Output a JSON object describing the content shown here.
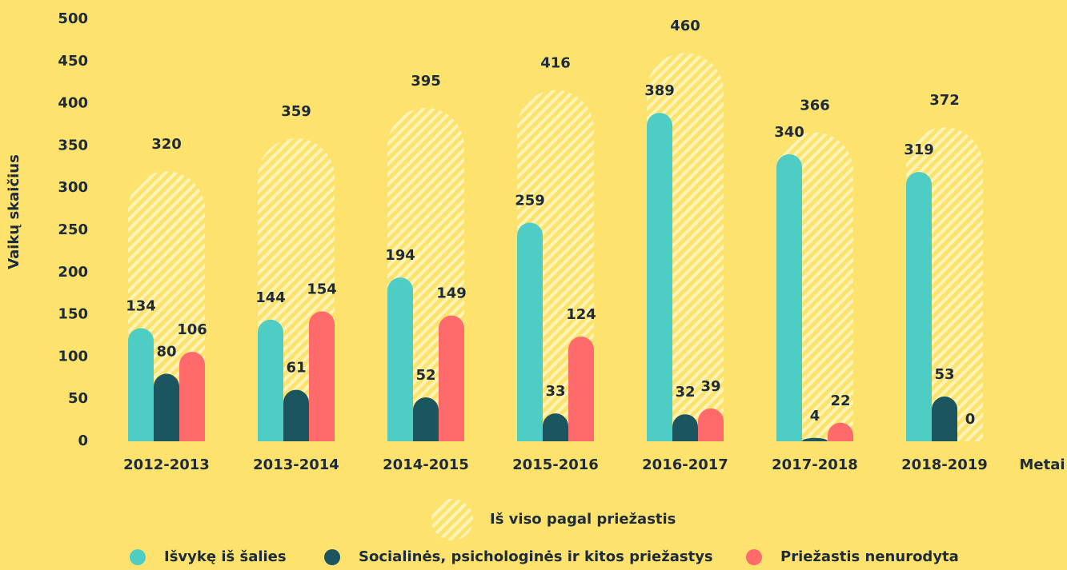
{
  "chart_data": {
    "type": "bar",
    "y_label": "Vaikų skaičius",
    "x_label": "Metai",
    "categories": [
      "2012-2013",
      "2013-2014",
      "2014-2015",
      "2015-2016",
      "2016-2017",
      "2017-2018",
      "2018-2019"
    ],
    "series": [
      {
        "name": "Iš viso pagal priežastis",
        "color": "#fff4b8",
        "values": [
          320,
          359,
          395,
          416,
          460,
          366,
          372
        ]
      },
      {
        "name": "Išvykę iš šalies",
        "color": "#4ecdc4",
        "values": [
          134,
          144,
          194,
          259,
          389,
          340,
          319
        ]
      },
      {
        "name": "Socialinės, psichologinės ir kitos priežastys",
        "color": "#1b5560",
        "values": [
          80,
          61,
          52,
          33,
          32,
          4,
          53
        ]
      },
      {
        "name": "Priežastis nenurodyta",
        "color": "#ff6b6b",
        "values": [
          106,
          154,
          149,
          124,
          39,
          22,
          0
        ]
      }
    ],
    "ylim": [
      0,
      500
    ],
    "yticks": [
      0,
      50,
      100,
      150,
      200,
      250,
      300,
      350,
      400,
      450,
      500
    ],
    "grid": false
  }
}
